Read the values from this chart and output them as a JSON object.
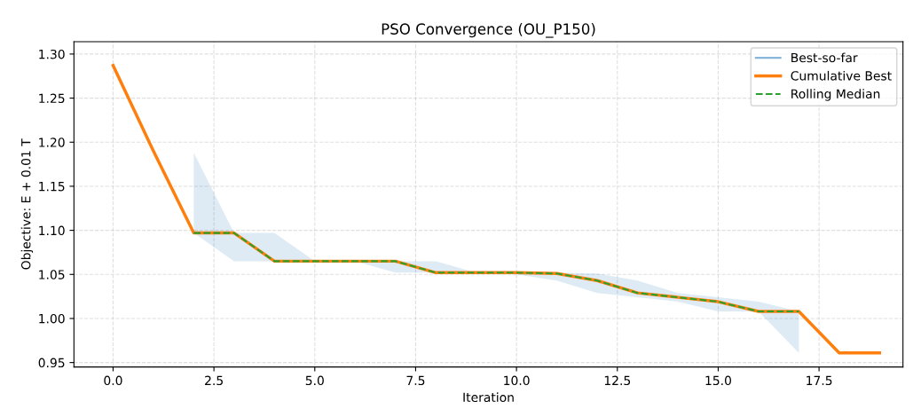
{
  "chart_data": {
    "type": "line",
    "title": "PSO Convergence (OU_P150)",
    "xlabel": "Iteration",
    "ylabel": "Objective: E + 0.01 T",
    "x": [
      0,
      1,
      2,
      3,
      4,
      5,
      6,
      7,
      8,
      9,
      10,
      11,
      12,
      13,
      14,
      15,
      16,
      17,
      18,
      19
    ],
    "series": [
      {
        "name": "Best-so-far",
        "color": "#7eb0d8",
        "values": [
          null,
          null,
          null,
          null,
          null,
          null,
          null,
          null,
          null,
          null,
          null,
          null,
          null,
          null,
          null,
          null,
          null,
          null,
          null,
          null
        ],
        "lower": [
          null,
          null,
          1.097,
          1.065,
          1.065,
          1.065,
          1.065,
          1.052,
          1.052,
          1.052,
          1.05,
          1.043,
          1.029,
          1.024,
          1.019,
          1.008,
          1.008,
          0.961,
          null,
          null
        ],
        "upper": [
          null,
          null,
          1.188,
          1.097,
          1.097,
          1.065,
          1.065,
          1.065,
          1.065,
          1.052,
          1.052,
          1.052,
          1.051,
          1.043,
          1.029,
          1.024,
          1.019,
          1.008,
          null,
          null
        ]
      },
      {
        "name": "Cumulative Best",
        "color": "#ff7f0e",
        "values": [
          1.287,
          1.19,
          1.097,
          1.097,
          1.065,
          1.065,
          1.065,
          1.065,
          1.052,
          1.052,
          1.052,
          1.051,
          1.043,
          1.029,
          1.024,
          1.019,
          1.008,
          1.008,
          0.961,
          0.961
        ]
      },
      {
        "name": "Rolling Median",
        "color": "#2ca02c",
        "line_style": "dashed",
        "values": [
          null,
          null,
          1.097,
          1.097,
          1.065,
          1.065,
          1.065,
          1.065,
          1.052,
          1.052,
          1.052,
          1.051,
          1.043,
          1.029,
          1.024,
          1.019,
          1.008,
          1.008,
          null,
          null
        ]
      }
    ],
    "xlim": [
      -0.97,
      19.58
    ],
    "xticks": [
      {
        "value": 0,
        "label": "0.0"
      },
      2.5,
      {
        "value": 5,
        "label": "5.0"
      },
      7.5,
      {
        "value": 10,
        "label": "10.0"
      },
      12.5,
      {
        "value": 15,
        "label": "15.0"
      },
      17.5
    ],
    "ylim": [
      0.945,
      1.314
    ],
    "yticks": [
      0.95,
      {
        "value": 1.0,
        "label": "1.00"
      },
      1.05,
      {
        "value": 1.1,
        "label": "1.10"
      },
      1.15,
      {
        "value": 1.2,
        "label": "1.20"
      },
      1.25,
      {
        "value": 1.3,
        "label": "1.30"
      }
    ],
    "grid": true,
    "legend": "top right",
    "line_style": "solid",
    "marker": "none"
  }
}
